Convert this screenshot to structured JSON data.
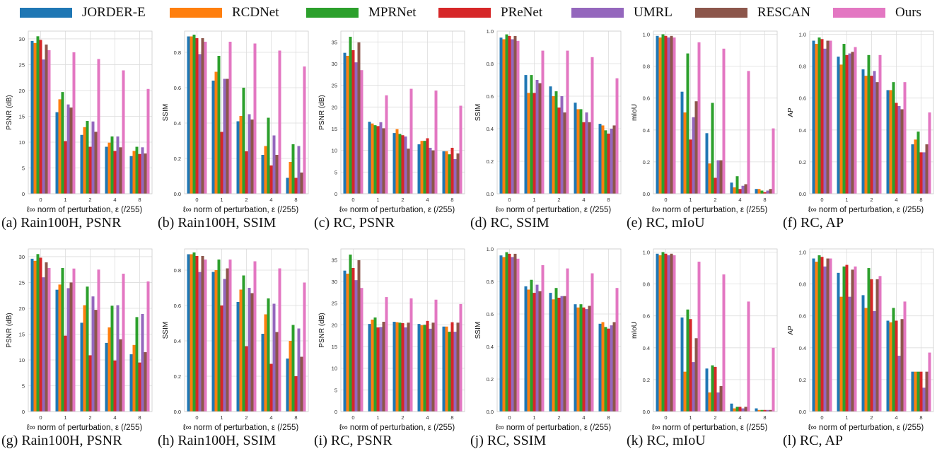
{
  "legend": [
    {
      "name": "JORDER-E",
      "color": "#1f77b4"
    },
    {
      "name": "RCDNet",
      "color": "#ff7f0e"
    },
    {
      "name": "MPRNet",
      "color": "#2ca02c"
    },
    {
      "name": "PReNet",
      "color": "#d62728"
    },
    {
      "name": "UMRL",
      "color": "#9467bd"
    },
    {
      "name": "RESCAN",
      "color": "#8c564b"
    },
    {
      "name": "Ours",
      "color": "#e377c2"
    }
  ],
  "xlabel": "ℓ∞ norm of perturbation, ε (/255)",
  "categories": [
    "0",
    "1",
    "2",
    "4",
    "8"
  ],
  "chart_data": [
    {
      "type": "bar",
      "caption": "(a) Rain100H, PSNR",
      "ylabel": "PSNR (dB)",
      "ylim": [
        0,
        31.5
      ],
      "yticks": [
        0,
        5,
        10,
        15,
        20,
        25,
        30
      ],
      "yticklabels": [
        "0",
        "5",
        "10",
        "15",
        "20",
        "25",
        "30"
      ],
      "series": [
        [
          29.6,
          15.8,
          11.4,
          9.1,
          7.3
        ],
        [
          29.2,
          18.3,
          12.9,
          9.9,
          8.3
        ],
        [
          30.5,
          19.7,
          14.1,
          11.1,
          9.1
        ],
        [
          29.8,
          10.2,
          9.1,
          8.3,
          7.7
        ],
        [
          26.0,
          17.3,
          14.0,
          11.1,
          9.0
        ],
        [
          28.9,
          16.7,
          12.0,
          9.0,
          7.8
        ],
        [
          27.8,
          27.4,
          26.1,
          23.9,
          20.3
        ]
      ]
    },
    {
      "type": "bar",
      "caption": "(b) Rain100H, SSIM",
      "ylabel": "SSIM",
      "ylim": [
        0,
        0.92
      ],
      "yticks": [
        0,
        0.2,
        0.4,
        0.6,
        0.8
      ],
      "yticklabels": [
        "0.0",
        "0.2",
        "0.4",
        "0.6",
        "0.8"
      ],
      "series": [
        [
          0.89,
          0.64,
          0.41,
          0.22,
          0.09
        ],
        [
          0.89,
          0.69,
          0.44,
          0.27,
          0.18
        ],
        [
          0.9,
          0.78,
          0.6,
          0.43,
          0.28
        ],
        [
          0.88,
          0.35,
          0.24,
          0.16,
          0.09
        ],
        [
          0.79,
          0.65,
          0.45,
          0.33,
          0.27
        ],
        [
          0.88,
          0.65,
          0.42,
          0.22,
          0.12
        ],
        [
          0.86,
          0.86,
          0.85,
          0.81,
          0.72
        ]
      ]
    },
    {
      "type": "bar",
      "caption": "(c) RC, PSNR",
      "ylabel": "PSNR (dB)",
      "ylim": [
        0,
        37.5
      ],
      "yticks": [
        0,
        5,
        10,
        15,
        20,
        25,
        30,
        35
      ],
      "yticklabels": [
        "0",
        "5",
        "10",
        "15",
        "20",
        "25",
        "30",
        "35"
      ],
      "series": [
        [
          32.5,
          16.6,
          14.0,
          11.4,
          9.8
        ],
        [
          31.8,
          16.2,
          14.9,
          12.2,
          9.8
        ],
        [
          36.2,
          15.8,
          13.8,
          12.2,
          9.1
        ],
        [
          33.1,
          15.6,
          13.5,
          12.8,
          10.6
        ],
        [
          30.3,
          16.5,
          13.2,
          10.6,
          8.0
        ],
        [
          34.9,
          15.1,
          10.4,
          10.0,
          9.3
        ],
        [
          28.5,
          22.7,
          24.2,
          23.8,
          20.3
        ]
      ]
    },
    {
      "type": "bar",
      "caption": "(d) RC, SSIM",
      "ylabel": "SSIM",
      "ylim": [
        0,
        1.0
      ],
      "yticks": [
        0,
        0.2,
        0.4,
        0.6,
        0.8,
        1.0
      ],
      "yticklabels": [
        "0.0",
        "0.2",
        "0.4",
        "0.6",
        "0.8",
        "1.0"
      ],
      "series": [
        [
          0.96,
          0.73,
          0.66,
          0.56,
          0.43
        ],
        [
          0.95,
          0.62,
          0.6,
          0.52,
          0.42
        ],
        [
          0.98,
          0.73,
          0.63,
          0.52,
          0.39
        ],
        [
          0.97,
          0.62,
          0.53,
          0.44,
          0.37
        ],
        [
          0.95,
          0.7,
          0.6,
          0.5,
          0.4
        ],
        [
          0.97,
          0.68,
          0.5,
          0.44,
          0.42
        ],
        [
          0.94,
          0.88,
          0.88,
          0.84,
          0.71
        ]
      ]
    },
    {
      "type": "bar",
      "caption": "(e) RC, mIoU",
      "ylabel": "mIoU",
      "ylim": [
        0,
        1.02
      ],
      "yticks": [
        0,
        0.2,
        0.4,
        0.6,
        0.8,
        1.0
      ],
      "yticklabels": [
        "0.0",
        "0.2",
        "0.4",
        "0.6",
        "0.8",
        "1.0"
      ],
      "series": [
        [
          0.99,
          0.64,
          0.38,
          0.07,
          0.03
        ],
        [
          0.98,
          0.51,
          0.19,
          0.04,
          0.03
        ],
        [
          1.0,
          0.88,
          0.57,
          0.11,
          0.02
        ],
        [
          0.99,
          0.34,
          0.1,
          0.03,
          0.01
        ],
        [
          0.98,
          0.48,
          0.21,
          0.05,
          0.02
        ],
        [
          0.99,
          0.58,
          0.21,
          0.06,
          0.03
        ],
        [
          0.98,
          0.95,
          0.91,
          0.77,
          0.41
        ]
      ]
    },
    {
      "type": "bar",
      "caption": "(f) RC, AP",
      "ylabel": "AP",
      "ylim": [
        0,
        1.02
      ],
      "yticks": [
        0,
        0.2,
        0.4,
        0.6,
        0.8,
        1.0
      ],
      "yticklabels": [
        "0.0",
        "0.2",
        "0.4",
        "0.6",
        "0.8",
        "1.0"
      ],
      "series": [
        [
          0.96,
          0.86,
          0.78,
          0.65,
          0.31
        ],
        [
          0.94,
          0.81,
          0.74,
          0.65,
          0.34
        ],
        [
          0.98,
          0.94,
          0.87,
          0.7,
          0.39
        ],
        [
          0.97,
          0.87,
          0.74,
          0.57,
          0.26
        ],
        [
          0.91,
          0.88,
          0.77,
          0.55,
          0.26
        ],
        [
          0.96,
          0.89,
          0.7,
          0.53,
          0.31
        ],
        [
          0.96,
          0.92,
          0.87,
          0.7,
          0.51
        ]
      ]
    },
    {
      "type": "bar",
      "caption": "(g) Rain100H, PSNR",
      "ylabel": "PSNR (dB)",
      "ylim": [
        0,
        31.5
      ],
      "yticks": [
        0,
        5,
        10,
        15,
        20,
        25,
        30
      ],
      "yticklabels": [
        "0",
        "5",
        "10",
        "15",
        "20",
        "25",
        "30"
      ],
      "series": [
        [
          29.6,
          23.6,
          17.2,
          13.3,
          11.1
        ],
        [
          29.2,
          24.6,
          20.6,
          16.3,
          12.9
        ],
        [
          30.5,
          27.8,
          24.2,
          20.5,
          18.3
        ],
        [
          29.8,
          14.7,
          10.9,
          9.9,
          9.5
        ],
        [
          26.0,
          23.9,
          22.3,
          20.6,
          18.9
        ],
        [
          28.9,
          25.0,
          19.7,
          14.0,
          11.5
        ],
        [
          27.8,
          27.7,
          27.5,
          26.7,
          25.2
        ]
      ]
    },
    {
      "type": "bar",
      "caption": "(h) Rain100H, SSIM",
      "ylabel": "SSIM",
      "ylim": [
        0,
        0.92
      ],
      "yticks": [
        0,
        0.2,
        0.4,
        0.6,
        0.8
      ],
      "yticklabels": [
        "0.0",
        "0.2",
        "0.4",
        "0.6",
        "0.8"
      ],
      "series": [
        [
          0.89,
          0.79,
          0.62,
          0.44,
          0.3
        ],
        [
          0.89,
          0.8,
          0.69,
          0.55,
          0.4
        ],
        [
          0.9,
          0.86,
          0.77,
          0.64,
          0.49
        ],
        [
          0.88,
          0.6,
          0.37,
          0.27,
          0.2
        ],
        [
          0.79,
          0.75,
          0.7,
          0.61,
          0.47
        ],
        [
          0.88,
          0.81,
          0.67,
          0.45,
          0.31
        ],
        [
          0.86,
          0.86,
          0.85,
          0.81,
          0.73
        ]
      ]
    },
    {
      "type": "bar",
      "caption": "(i) RC, PSNR",
      "ylabel": "PSNR (dB)",
      "ylim": [
        0,
        37.5
      ],
      "yticks": [
        0,
        5,
        10,
        15,
        20,
        25,
        30,
        35
      ],
      "yticklabels": [
        "0",
        "5",
        "10",
        "15",
        "20",
        "25",
        "30",
        "35"
      ],
      "series": [
        [
          32.5,
          20.2,
          20.7,
          20.2,
          19.6
        ],
        [
          31.8,
          21.2,
          20.6,
          19.9,
          19.6
        ],
        [
          36.2,
          21.7,
          20.5,
          20.0,
          18.4
        ],
        [
          33.1,
          19.4,
          20.4,
          20.9,
          20.6
        ],
        [
          30.3,
          19.5,
          19.4,
          19.1,
          18.4
        ],
        [
          34.9,
          20.7,
          20.5,
          20.5,
          20.5
        ],
        [
          28.5,
          26.4,
          26.1,
          25.8,
          24.8
        ]
      ]
    },
    {
      "type": "bar",
      "caption": "(j) RC, SSIM",
      "ylabel": "SSIM",
      "ylim": [
        0,
        1.0
      ],
      "yticks": [
        0,
        0.2,
        0.4,
        0.6,
        0.8,
        1.0
      ],
      "yticklabels": [
        "0.0",
        "0.2",
        "0.4",
        "0.6",
        "0.8",
        "1.0"
      ],
      "series": [
        [
          0.96,
          0.77,
          0.73,
          0.66,
          0.54
        ],
        [
          0.95,
          0.75,
          0.69,
          0.64,
          0.55
        ],
        [
          0.98,
          0.81,
          0.76,
          0.66,
          0.52
        ],
        [
          0.97,
          0.73,
          0.7,
          0.64,
          0.51
        ],
        [
          0.95,
          0.78,
          0.71,
          0.63,
          0.53
        ],
        [
          0.97,
          0.74,
          0.71,
          0.65,
          0.55
        ],
        [
          0.94,
          0.9,
          0.88,
          0.85,
          0.76
        ]
      ]
    },
    {
      "type": "bar",
      "caption": "(k) RC, mIoU",
      "ylabel": "mIoU",
      "ylim": [
        0,
        1.02
      ],
      "yticks": [
        0,
        0.2,
        0.4,
        0.6,
        0.8,
        1.0
      ],
      "yticklabels": [
        "0.0",
        "0.2",
        "0.4",
        "0.6",
        "0.8",
        "1.0"
      ],
      "series": [
        [
          0.99,
          0.59,
          0.27,
          0.05,
          0.02
        ],
        [
          0.98,
          0.25,
          0.12,
          0.02,
          0.01
        ],
        [
          1.0,
          0.64,
          0.29,
          0.03,
          0.01
        ],
        [
          0.99,
          0.58,
          0.28,
          0.03,
          0.01
        ],
        [
          0.98,
          0.31,
          0.12,
          0.02,
          0.01
        ],
        [
          0.99,
          0.46,
          0.16,
          0.03,
          0.01
        ],
        [
          0.98,
          0.94,
          0.86,
          0.69,
          0.4
        ]
      ]
    },
    {
      "type": "bar",
      "caption": "(l) RC, AP",
      "ylabel": "AP",
      "ylim": [
        0,
        1.02
      ],
      "yticks": [
        0,
        0.2,
        0.4,
        0.6,
        0.8,
        1.0
      ],
      "yticklabels": [
        "0.0",
        "0.2",
        "0.4",
        "0.6",
        "0.8",
        "1.0"
      ],
      "series": [
        [
          0.96,
          0.87,
          0.73,
          0.57,
          0.25
        ],
        [
          0.94,
          0.72,
          0.65,
          0.56,
          0.25
        ],
        [
          0.98,
          0.91,
          0.9,
          0.65,
          0.25
        ],
        [
          0.97,
          0.92,
          0.83,
          0.57,
          0.25
        ],
        [
          0.91,
          0.72,
          0.63,
          0.35,
          0.15
        ],
        [
          0.96,
          0.89,
          0.83,
          0.58,
          0.25
        ],
        [
          0.96,
          0.91,
          0.85,
          0.69,
          0.37
        ]
      ]
    }
  ]
}
